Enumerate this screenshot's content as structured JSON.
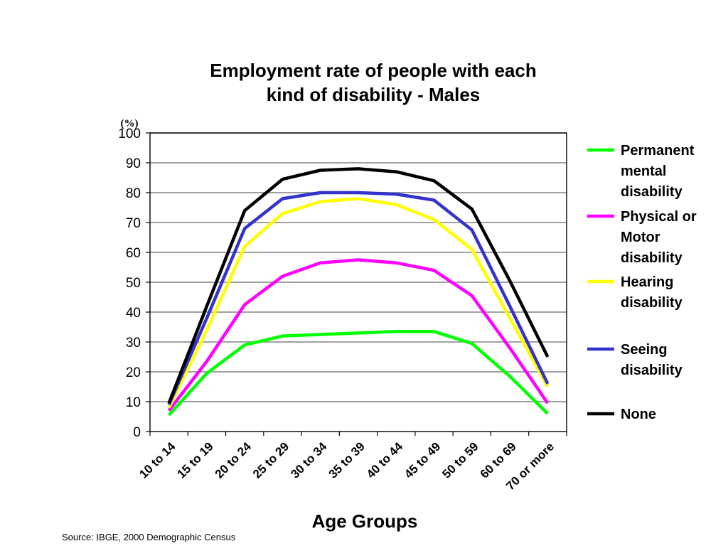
{
  "chart_data": {
    "type": "line",
    "title_lines": [
      "Employment rate of people with each",
      "kind of disability - Males"
    ],
    "unit_label": "(%)",
    "xlabel": "Age Groups",
    "ylabel": "",
    "ylim": [
      0,
      100
    ],
    "yticks": [
      0,
      10,
      20,
      30,
      40,
      50,
      60,
      70,
      80,
      90,
      100
    ],
    "categories": [
      "10 to 14",
      "15 to 19",
      "20 to 24",
      "25 to 29",
      "30 to 34",
      "35 to 39",
      "40 to 44",
      "45 to 49",
      "50 to 59",
      "60 to 69",
      "70 or more"
    ],
    "grid": true,
    "legend_position": "right",
    "series": [
      {
        "name": "Permanent mental disability",
        "legend_lines": [
          "Permanent",
          "mental",
          "disability"
        ],
        "color": "#00FF00",
        "values": [
          5.5,
          19.5,
          29,
          32,
          32.5,
          33,
          33.5,
          33.5,
          29.5,
          18.5,
          6
        ]
      },
      {
        "name": "Physical or Motor disability",
        "legend_lines": [
          "Physical or",
          "Motor",
          "disability"
        ],
        "color": "#FF00FF",
        "values": [
          7,
          23.5,
          42.5,
          52,
          56.5,
          57.5,
          56.5,
          54,
          45.5,
          28,
          9.5
        ]
      },
      {
        "name": "Hearing disability",
        "legend_lines": [
          "Hearing",
          "disability"
        ],
        "color": "#FFFF00",
        "values": [
          8,
          34,
          62,
          73,
          77,
          78,
          76,
          71,
          61,
          38,
          15
        ]
      },
      {
        "name": "Seeing disability",
        "legend_lines": [
          "Seeing",
          "disability"
        ],
        "color": "#3333CC",
        "values": [
          9,
          38,
          68,
          78,
          80,
          80,
          79.5,
          77.5,
          67.5,
          42,
          16
        ]
      },
      {
        "name": "None",
        "legend_lines": [
          "None"
        ],
        "color": "#000000",
        "values": [
          9.5,
          42,
          74,
          84.5,
          87.5,
          88,
          87,
          84,
          74.5,
          50.5,
          25
        ]
      }
    ]
  },
  "source": "Source: IBGE, 2000 Demographic Census"
}
